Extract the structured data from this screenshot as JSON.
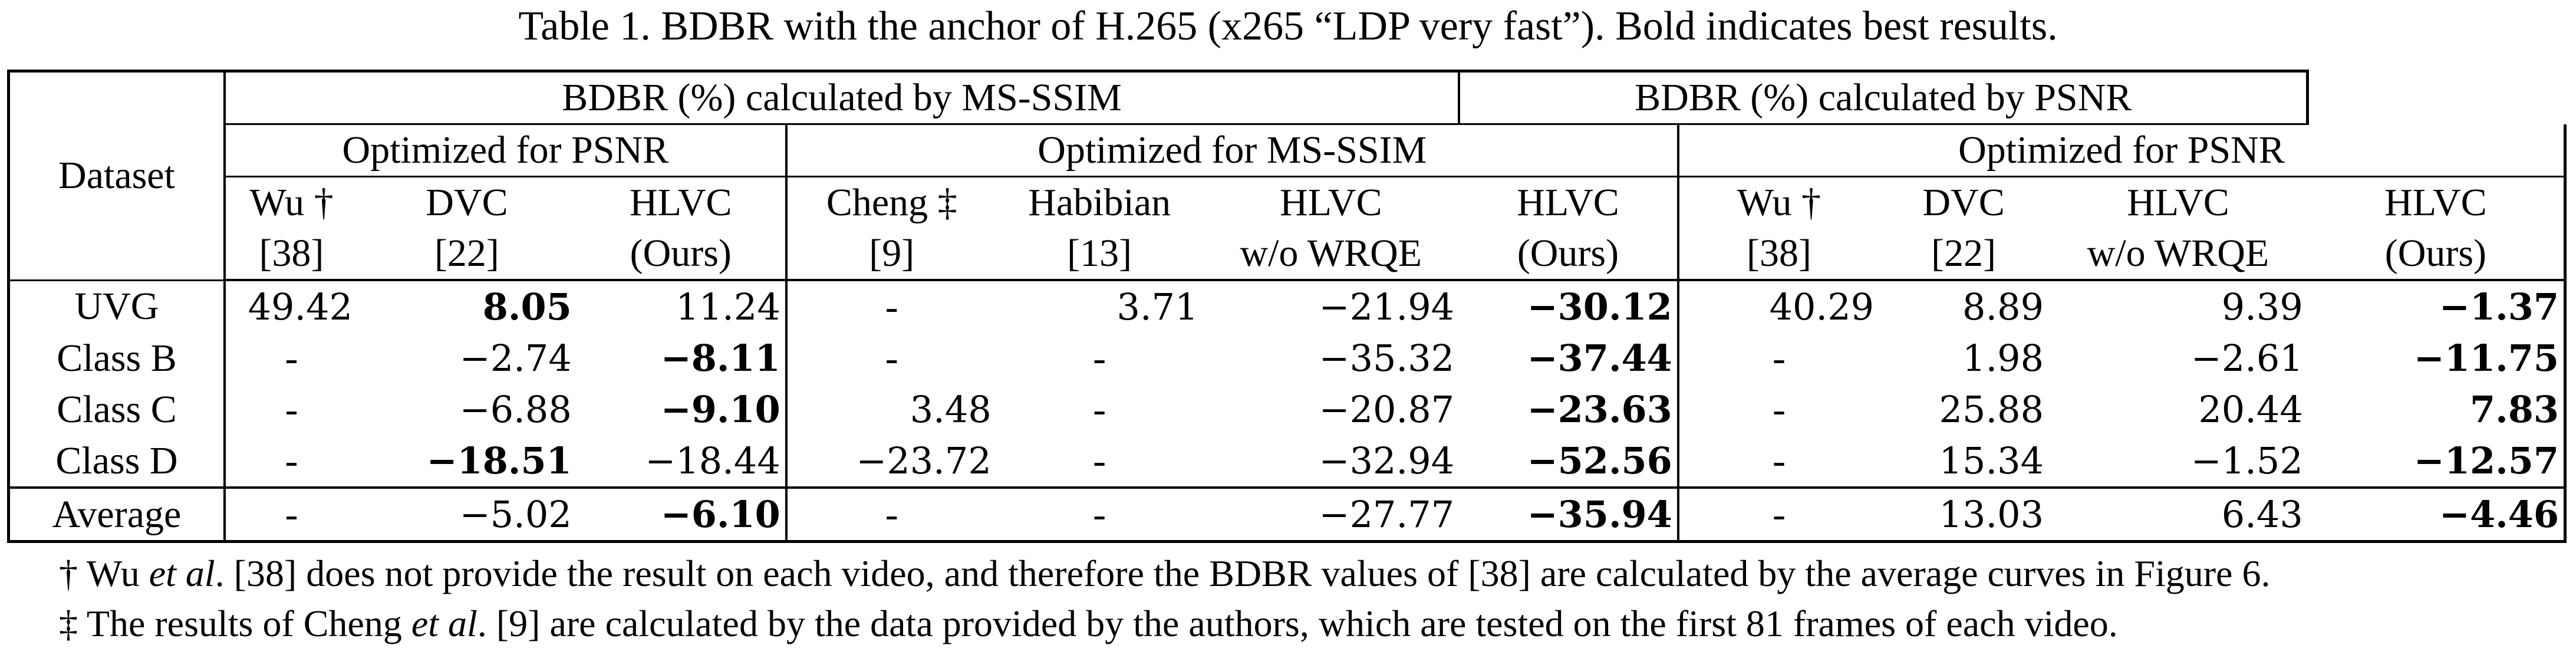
{
  "caption": "Table 1. BDBR with the anchor of H.265 (x265 “LDP very fast”). Bold indicates best results.",
  "header": {
    "dataset": "Dataset",
    "group_msssim": "BDBR (%) calculated by MS-SSIM",
    "group_psnr": "BDBR (%) calculated by PSNR",
    "sub_opt_psnr_1": "Optimized for PSNR",
    "sub_opt_msssim": "Optimized for MS-SSIM",
    "sub_opt_psnr_2": "Optimized for PSNR",
    "columns": [
      {
        "line1": "Wu †",
        "line2": "[38]"
      },
      {
        "line1": "DVC",
        "line2": "[22]"
      },
      {
        "line1": "HLVC",
        "line2": "(Ours)"
      },
      {
        "line1": "Cheng ‡",
        "line2": "[9]"
      },
      {
        "line1": "Habibian",
        "line2": "[13]"
      },
      {
        "line1": "HLVC",
        "line2": "w/o WRQE"
      },
      {
        "line1": "HLVC",
        "line2": "(Ours)"
      },
      {
        "line1": "Wu †",
        "line2": "[38]"
      },
      {
        "line1": "DVC",
        "line2": "[22]"
      },
      {
        "line1": "HLVC",
        "line2": "w/o WRQE"
      },
      {
        "line1": "HLVC",
        "line2": "(Ours)"
      }
    ]
  },
  "rows": [
    {
      "dataset": "UVG",
      "cells": [
        "49.42",
        "8.05",
        "11.24",
        "-",
        "3.71",
        "−21.94",
        "−30.12",
        "40.29",
        "8.89",
        "9.39",
        "−1.37"
      ],
      "bold": [
        1,
        6,
        10
      ]
    },
    {
      "dataset": "Class B",
      "cells": [
        "-",
        "−2.74",
        "−8.11",
        "-",
        "-",
        "−35.32",
        "−37.44",
        "-",
        "1.98",
        "−2.61",
        "−11.75"
      ],
      "bold": [
        2,
        6,
        10
      ]
    },
    {
      "dataset": "Class C",
      "cells": [
        "-",
        "−6.88",
        "−9.10",
        "3.48",
        "-",
        "−20.87",
        "−23.63",
        "-",
        "25.88",
        "20.44",
        "7.83"
      ],
      "bold": [
        2,
        6,
        10
      ]
    },
    {
      "dataset": "Class D",
      "cells": [
        "-",
        "−18.51",
        "−18.44",
        "−23.72",
        "-",
        "−32.94",
        "−52.56",
        "-",
        "15.34",
        "−1.52",
        "−12.57"
      ],
      "bold": [
        1,
        6,
        10
      ]
    }
  ],
  "average": {
    "dataset": "Average",
    "cells": [
      "-",
      "−5.02",
      "−6.10",
      "-",
      "-",
      "−27.77",
      "−35.94",
      "-",
      "13.03",
      "6.43",
      "−4.46"
    ],
    "bold": [
      2,
      6,
      10
    ]
  },
  "notes": {
    "note1": {
      "pre": "† Wu ",
      "em": "et al",
      "post": ". [38] does not provide the result on each video, and therefore the BDBR values of [38] are calculated by the average curves in Figure 6."
    },
    "note2": {
      "pre": "‡ The results of Cheng ",
      "em": "et al",
      "post": ". [9] are calculated by the data provided by the authors, which are tested on the first 81 frames of each video."
    }
  }
}
